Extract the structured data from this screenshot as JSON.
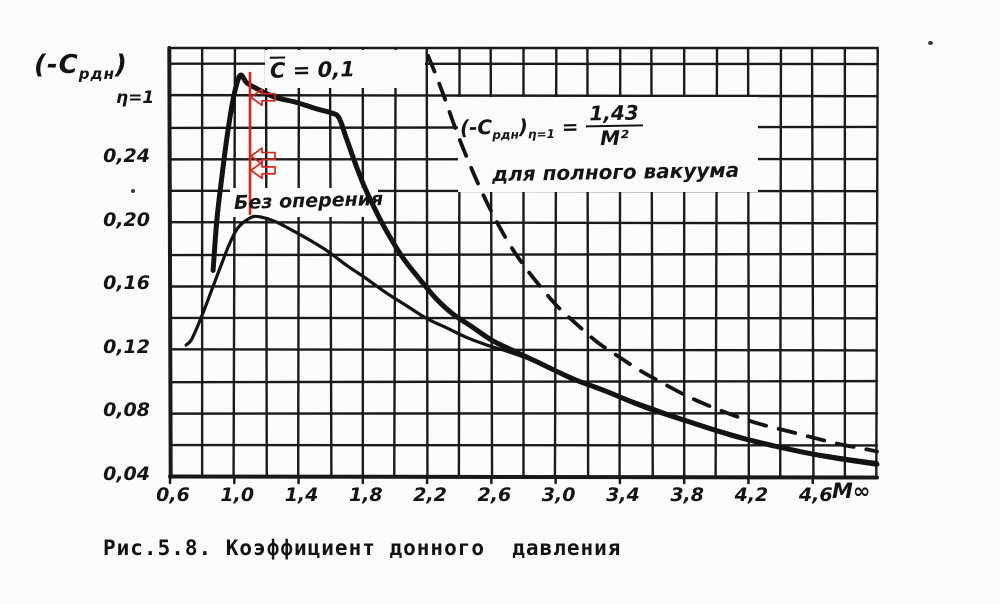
{
  "figure": {
    "caption": "Рис.5.8. Коэффициент донного  давления"
  },
  "colors": {
    "ink": "#1a1a1a",
    "curve_ink": "#131313",
    "red": "#d9261d",
    "paper": "#fcfcfa"
  },
  "labels": {
    "yaxis_open": "(-C",
    "yaxis_sub": "рдн",
    "yaxis_close": ")",
    "yaxis_sub2": "η=1",
    "cbar_letter": "C",
    "cbar_rest": " = 0,1",
    "bez": "Без оперения",
    "f_open": "(-C",
    "f_sub": "рдн",
    "f_close": ")",
    "f_sub2": "η=1",
    "f_eq": "=",
    "f_num": "1,43",
    "f_den": "M²",
    "f_line2": "для полного вакуума",
    "x_end": "M∞"
  },
  "chart_data": {
    "type": "line",
    "title": "Коэффициент донного давления",
    "xlabel": "M∞",
    "ylabel": "(-Cрдн) η=1",
    "grid": true,
    "x_axis": {
      "range": [
        0.6,
        5.0
      ],
      "ticks": [
        {
          "value": 0.6,
          "label": "0,6"
        },
        {
          "value": 1.0,
          "label": "1,0"
        },
        {
          "value": 1.4,
          "label": "1,4"
        },
        {
          "value": 1.8,
          "label": "1,8"
        },
        {
          "value": 2.2,
          "label": "2,2"
        },
        {
          "value": 2.6,
          "label": "2,6"
        },
        {
          "value": 3.0,
          "label": "3,0"
        },
        {
          "value": 3.4,
          "label": "3,4"
        },
        {
          "value": 3.8,
          "label": "3,8"
        },
        {
          "value": 4.2,
          "label": "4,2"
        },
        {
          "value": 4.6,
          "label": "4,6"
        }
      ]
    },
    "y_axis": {
      "range": [
        0.04,
        0.31
      ],
      "ticks": [
        {
          "value": 0.04,
          "label": "0,04"
        },
        {
          "value": 0.08,
          "label": "0,08"
        },
        {
          "value": 0.12,
          "label": "0,12"
        },
        {
          "value": 0.16,
          "label": "0,16"
        },
        {
          "value": 0.2,
          "label": "0,20"
        },
        {
          "value": 0.24,
          "label": "0,24"
        }
      ]
    },
    "series": [
      {
        "id": "cbar01",
        "label": "C̄ = 0,1",
        "style": "solid",
        "width": 5,
        "points": [
          [
            0.868,
            0.17
          ],
          [
            0.892,
            0.202
          ],
          [
            0.924,
            0.23
          ],
          [
            0.955,
            0.254
          ],
          [
            0.986,
            0.274
          ],
          [
            1.017,
            0.288
          ],
          [
            1.042,
            0.293
          ],
          [
            1.079,
            0.288
          ],
          [
            1.148,
            0.284
          ],
          [
            1.253,
            0.279
          ],
          [
            1.378,
            0.276
          ],
          [
            1.502,
            0.272
          ],
          [
            1.608,
            0.269
          ],
          [
            1.652,
            0.266
          ],
          [
            1.695,
            0.254
          ],
          [
            1.751,
            0.238
          ],
          [
            1.813,
            0.222
          ],
          [
            1.888,
            0.206
          ],
          [
            1.969,
            0.191
          ],
          [
            2.056,
            0.177
          ],
          [
            2.15,
            0.165
          ],
          [
            2.249,
            0.153
          ],
          [
            2.355,
            0.143
          ],
          [
            2.473,
            0.135
          ],
          [
            2.604,
            0.126
          ],
          [
            2.747,
            0.119
          ],
          [
            2.915,
            0.111
          ],
          [
            3.102,
            0.102
          ],
          [
            3.313,
            0.094
          ],
          [
            3.556,
            0.084
          ],
          [
            3.824,
            0.075
          ],
          [
            4.104,
            0.066
          ],
          [
            4.384,
            0.059
          ],
          [
            4.676,
            0.053
          ],
          [
            5.0,
            0.048
          ]
        ]
      },
      {
        "id": "bez-opereniya",
        "label": "Без оперения",
        "style": "solid",
        "width": 3.2,
        "points": [
          [
            0.7,
            0.123
          ],
          [
            0.731,
            0.126
          ],
          [
            0.768,
            0.134
          ],
          [
            0.812,
            0.145
          ],
          [
            0.861,
            0.158
          ],
          [
            0.917,
            0.173
          ],
          [
            0.967,
            0.186
          ],
          [
            1.017,
            0.196
          ],
          [
            1.067,
            0.201
          ],
          [
            1.123,
            0.204
          ],
          [
            1.191,
            0.203
          ],
          [
            1.272,
            0.2
          ],
          [
            1.365,
            0.195
          ],
          [
            1.471,
            0.189
          ],
          [
            1.583,
            0.182
          ],
          [
            1.702,
            0.173
          ],
          [
            1.82,
            0.165
          ],
          [
            1.944,
            0.156
          ],
          [
            2.069,
            0.148
          ],
          [
            2.193,
            0.14
          ],
          [
            2.318,
            0.134
          ],
          [
            2.442,
            0.128
          ],
          [
            2.573,
            0.123
          ],
          [
            2.703,
            0.119
          ],
          [
            2.84,
            0.114
          ],
          [
            3.027,
            0.106
          ],
          [
            3.276,
            0.095
          ],
          [
            3.556,
            0.085
          ],
          [
            3.836,
            0.075
          ],
          [
            4.129,
            0.066
          ],
          [
            4.427,
            0.058
          ],
          [
            4.72,
            0.053
          ],
          [
            5.0,
            0.049
          ]
        ]
      },
      {
        "id": "vacuum",
        "label": "(-Cрдн)η=1 = 1,43/M² для полного вакуума",
        "style": "dashed",
        "width": 3.8,
        "formula": "1.43 / M^2",
        "points": [
          [
            2.206,
            0.305
          ],
          [
            2.255,
            0.293
          ],
          [
            2.311,
            0.278
          ],
          [
            2.374,
            0.26
          ],
          [
            2.448,
            0.241
          ],
          [
            2.529,
            0.222
          ],
          [
            2.616,
            0.204
          ],
          [
            2.71,
            0.187
          ],
          [
            2.803,
            0.173
          ],
          [
            2.903,
            0.16
          ],
          [
            3.015,
            0.147
          ],
          [
            3.133,
            0.136
          ],
          [
            3.257,
            0.125
          ],
          [
            3.388,
            0.116
          ],
          [
            3.525,
            0.107
          ],
          [
            3.668,
            0.099
          ],
          [
            3.817,
            0.091
          ],
          [
            3.973,
            0.084
          ],
          [
            4.129,
            0.078
          ],
          [
            4.284,
            0.073
          ],
          [
            4.44,
            0.069
          ],
          [
            4.595,
            0.065
          ],
          [
            4.751,
            0.061
          ],
          [
            4.906,
            0.058
          ],
          [
            5.0,
            0.056
          ]
        ]
      }
    ],
    "red_annotation": {
      "x": 1.098,
      "v_top": 0.295,
      "v_bottom": 0.205,
      "arrows_v": [
        0.279,
        0.242,
        0.233
      ]
    }
  }
}
